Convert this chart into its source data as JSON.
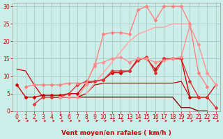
{
  "bg_color": "#cceee8",
  "grid_color": "#aacccc",
  "xlabel": "Vent moyen/en rafales ( km/h )",
  "xlim": [
    -0.5,
    23.5
  ],
  "ylim": [
    0,
    31
  ],
  "yticks": [
    0,
    5,
    10,
    15,
    20,
    25,
    30
  ],
  "xticks": [
    0,
    1,
    2,
    3,
    4,
    5,
    6,
    7,
    8,
    9,
    10,
    11,
    12,
    13,
    14,
    15,
    16,
    17,
    18,
    19,
    20,
    21,
    22,
    23
  ],
  "series": [
    {
      "x": [
        0,
        1,
        2,
        3,
        4,
        5,
        6,
        7,
        8,
        9,
        10,
        11,
        12,
        13,
        14,
        15,
        16,
        17,
        18,
        19,
        20,
        21,
        22
      ],
      "y": [
        7.5,
        4,
        4,
        4.5,
        4.5,
        4.5,
        5,
        5,
        8,
        8.5,
        9,
        11,
        11,
        11.5,
        15,
        15,
        12,
        15,
        15,
        15,
        4,
        4,
        4
      ],
      "color": "#cc0000",
      "lw": 1.0,
      "marker": "D",
      "ms": 2.0
    },
    {
      "x": [
        0,
        1,
        2,
        3,
        4,
        5,
        6,
        7,
        8,
        9,
        10,
        11,
        12,
        13,
        14,
        15,
        16,
        17,
        18,
        19,
        20,
        21,
        22,
        23
      ],
      "y": [
        12,
        11.5,
        7.5,
        4,
        4,
        4,
        4,
        4,
        5,
        7.5,
        8,
        8,
        8,
        8,
        8,
        8,
        8,
        8,
        8,
        8.5,
        4,
        4,
        4,
        7.5
      ],
      "color": "#cc0000",
      "lw": 0.9,
      "marker": null,
      "ms": 0
    },
    {
      "x": [
        4,
        5,
        6,
        7,
        8,
        9,
        10,
        11,
        12,
        13,
        14,
        15,
        16,
        17,
        18,
        19,
        20,
        21,
        22
      ],
      "y": [
        4,
        4,
        4,
        4,
        4,
        4,
        4,
        4,
        4,
        4,
        4,
        4,
        4,
        4,
        4,
        1,
        1,
        0,
        0
      ],
      "color": "#880000",
      "lw": 1.0,
      "marker": null,
      "ms": 0
    },
    {
      "x": [
        2,
        3,
        4,
        5,
        6,
        7,
        8,
        9,
        10,
        11,
        12,
        13,
        14,
        15,
        16,
        17,
        18,
        19,
        20,
        21,
        22,
        23
      ],
      "y": [
        2,
        4,
        4,
        4,
        5,
        7.5,
        8.5,
        8.5,
        9,
        11.5,
        11.5,
        11.5,
        14.5,
        15.5,
        11,
        15,
        15,
        15,
        8.5,
        4,
        4,
        1
      ],
      "color": "#dd3333",
      "lw": 1.0,
      "marker": "D",
      "ms": 2.0
    },
    {
      "x": [
        1,
        2,
        3,
        4,
        5,
        6,
        7,
        8,
        9,
        10,
        11,
        12,
        13,
        14,
        15,
        16,
        17,
        18,
        19,
        20,
        21,
        22
      ],
      "y": [
        7,
        7.5,
        7.5,
        7.5,
        7.5,
        8,
        8,
        8,
        13,
        22,
        22.5,
        22.5,
        22,
        29,
        30,
        26,
        30,
        30,
        30,
        25,
        11,
        7
      ],
      "color": "#ff8080",
      "lw": 1.0,
      "marker": "D",
      "ms": 2.0
    },
    {
      "x": [
        5,
        6,
        7,
        8,
        9,
        10,
        11,
        12,
        13,
        14,
        15,
        16,
        17,
        18,
        19,
        20,
        21,
        22,
        23
      ],
      "y": [
        4,
        4,
        4,
        7.5,
        13.5,
        14,
        15,
        15.5,
        14,
        15,
        15,
        14,
        14.5,
        15,
        15.5,
        24.5,
        19,
        11,
        7.5
      ],
      "color": "#ff9090",
      "lw": 1.0,
      "marker": "D",
      "ms": 2.0
    },
    {
      "x": [
        8,
        9,
        10,
        11,
        12,
        13,
        14,
        15,
        16,
        17,
        18,
        19,
        20
      ],
      "y": [
        5,
        8,
        11,
        14,
        17,
        20,
        22,
        23,
        24,
        24,
        25,
        25,
        25
      ],
      "color": "#ffaaaa",
      "lw": 1.2,
      "marker": null,
      "ms": 0
    }
  ],
  "arrow_color": "#cc0000",
  "tick_color": "#cc0000",
  "tick_fontsize": 5.5,
  "xlabel_fontsize": 6.5,
  "xlabel_color": "#cc0000"
}
